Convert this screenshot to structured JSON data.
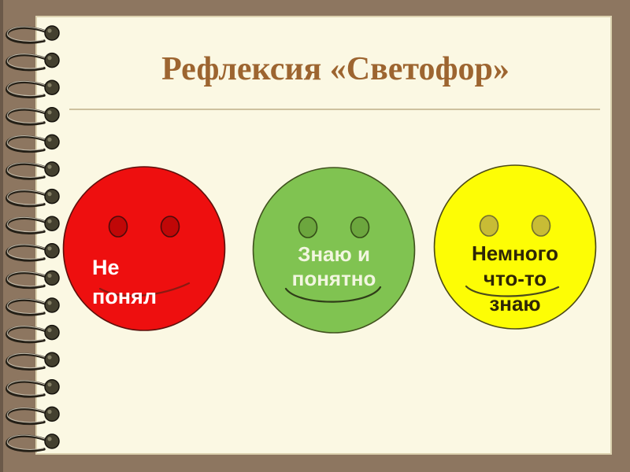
{
  "slide": {
    "title": "Рефлексия «Светофор»",
    "colors": {
      "background": "#8D7660",
      "background_edge": "#6B5949",
      "page": "#FBF8E3",
      "page_border": "#DCD2B0",
      "title_text": "#9D6530",
      "divider": "#CEC19E",
      "spiral_wire_dark": "#241F16",
      "spiral_wire_highlight": "#D6D0C0",
      "spiral_knob": "#44402F"
    }
  },
  "smileys": [
    {
      "name": "red",
      "lines": [
        "Не",
        "понял"
      ],
      "colors": {
        "face": "#EE0F0F",
        "outline": "#5E100C",
        "eye": "#C00707",
        "eye_outline": "#4E0B0B",
        "mouth": "#8A1A12",
        "text": "#FFFFFF"
      }
    },
    {
      "name": "green",
      "lines": [
        "Знаю и",
        "понятно"
      ],
      "colors": {
        "face": "#80C351",
        "outline": "#41521F",
        "eye": "#6CA63E",
        "eye_outline": "#344D17",
        "mouth": "#2F3D18",
        "text": "#F2F6E0"
      }
    },
    {
      "name": "yellow",
      "lines": [
        "Немного",
        "что-то",
        "знаю"
      ],
      "colors": {
        "face": "#FDFD05",
        "outline": "#4C4A17",
        "eye": "#C8BC35",
        "eye_outline": "#716E2E",
        "mouth": "#4A4A1C",
        "text": "#2E2506"
      }
    }
  ]
}
